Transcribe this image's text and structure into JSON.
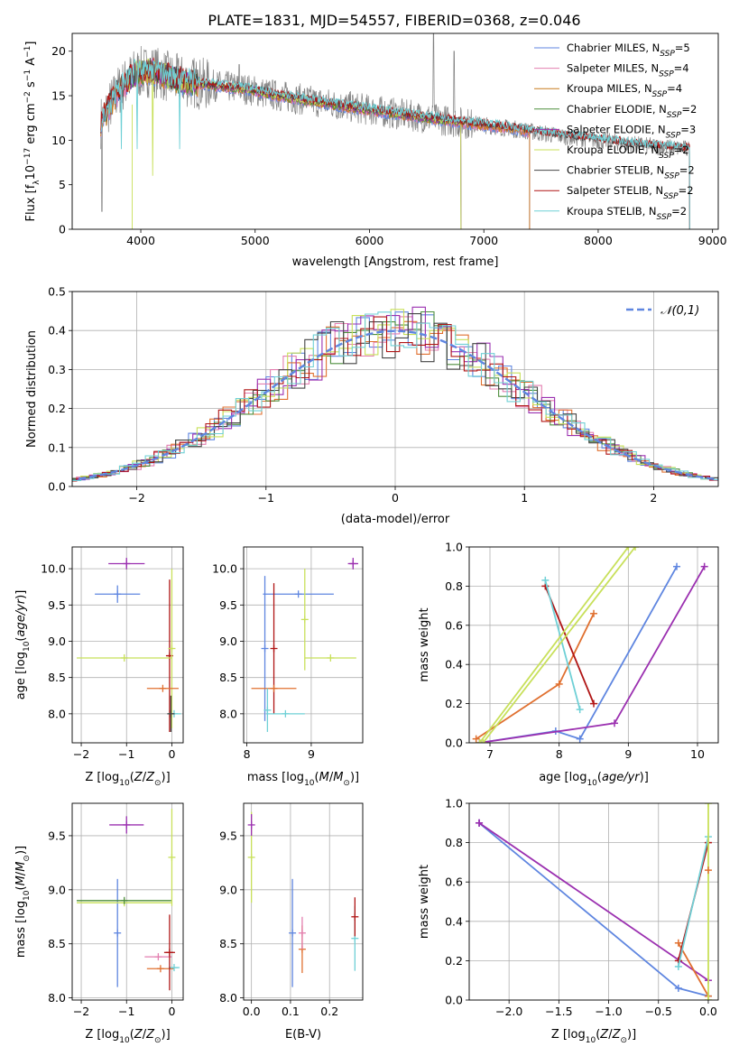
{
  "figure_title": "PLATE=1831, MJD=54557, FIBERID=0368, z=0.046",
  "colors": {
    "chabrier_miles": "#5f86e0",
    "salpeter_miles": "#e37fb0",
    "kroupa_miles": "#c87b1f",
    "chabrier_elodie": "#4f8f3e",
    "salpeter_elodie": "#9b30b0",
    "kroupa_elodie": "#c8e05a",
    "chabrier_stelib": "#444444",
    "salpeter_stelib": "#b01515",
    "kroupa_stelib": "#6fd0d6",
    "data_gray": "#808080",
    "orange": "#e07030",
    "gaussian": "#5f86e0",
    "grid": "#b0b0b0"
  },
  "chart_data": [
    {
      "id": "spectrum",
      "type": "line",
      "title": "PLATE=1831, MJD=54557, FIBERID=0368, z=0.046",
      "xlabel": "wavelength [Angstrom, rest frame]",
      "ylabel": "Flux [f_λ 10^-17 erg cm^-2 s^-1 A^-1]",
      "xlim": [
        3400,
        9050
      ],
      "ylim": [
        0,
        22
      ],
      "xticks": [
        4000,
        5000,
        6000,
        7000,
        8000,
        9000
      ],
      "yticks": [
        0,
        5,
        10,
        15,
        20
      ],
      "grid": false,
      "legend_position": "upper-right",
      "continuum_x": [
        3650,
        3800,
        3950,
        4100,
        4300,
        4600,
        4900,
        5200,
        5600,
        6000,
        6400,
        6800,
        7200,
        7600,
        8000,
        8400,
        8800
      ],
      "continuum_y": [
        12.0,
        15.5,
        17.5,
        17.8,
        16.8,
        16.2,
        15.8,
        15.0,
        14.2,
        13.4,
        12.7,
        12.0,
        11.4,
        10.6,
        10.0,
        9.4,
        9.0
      ],
      "series": [
        {
          "name": "Chabrier MILES, N_SSP=5",
          "color_key": "chabrier_miles",
          "x_range": [
            3650,
            7400
          ]
        },
        {
          "name": "Salpeter MILES, N_SSP=4",
          "color_key": "salpeter_miles",
          "x_range": [
            3650,
            7400
          ]
        },
        {
          "name": "Kroupa MILES, N_SSP=4",
          "color_key": "kroupa_miles",
          "x_range": [
            3650,
            7400
          ]
        },
        {
          "name": "Chabrier ELODIE, N_SSP=2",
          "color_key": "chabrier_elodie",
          "x_range": [
            3900,
            6800
          ]
        },
        {
          "name": "Salpeter ELODIE, N_SSP=3",
          "color_key": "salpeter_elodie",
          "x_range": [
            3900,
            6800
          ]
        },
        {
          "name": "Kroupa ELODIE, N_SSP=2",
          "color_key": "kroupa_elodie",
          "x_range": [
            3900,
            6800
          ]
        },
        {
          "name": "Chabrier STELIB, N_SSP=2",
          "color_key": "chabrier_stelib",
          "x_range": [
            3650,
            8800
          ]
        },
        {
          "name": "Salpeter STELIB, N_SSP=2",
          "color_key": "salpeter_stelib",
          "x_range": [
            3650,
            8800
          ]
        },
        {
          "name": "Kroupa STELIB, N_SSP=2",
          "color_key": "kroupa_stelib",
          "x_range": [
            3650,
            8800
          ]
        }
      ]
    },
    {
      "id": "residuals",
      "type": "line",
      "xlabel": "(data-model)/error",
      "ylabel": "Normed distribution",
      "xlim": [
        -2.5,
        2.5
      ],
      "ylim": [
        0,
        0.5
      ],
      "xticks": [
        -2,
        -1,
        0,
        1,
        2
      ],
      "yticks": [
        0.0,
        0.1,
        0.2,
        0.3,
        0.4,
        0.5
      ],
      "grid": true,
      "legend_position": "upper-right",
      "legend": [
        "𝒩(0,1)"
      ],
      "bin_width": 0.1,
      "series_color_keys": [
        "chabrier_miles",
        "salpeter_miles",
        "orange",
        "chabrier_elodie",
        "salpeter_elodie",
        "kroupa_elodie",
        "chabrier_stelib",
        "salpeter_stelib",
        "kroupa_stelib"
      ]
    },
    {
      "id": "age_vs_Z",
      "type": "scatter",
      "xlabel": "Z [log10(Z/Z⊙)]",
      "ylabel": "age [log10(age/yr)]",
      "xlim": [
        -2.2,
        0.25
      ],
      "ylim": [
        7.6,
        10.3
      ],
      "xticks": [
        -2,
        -1,
        0
      ],
      "yticks": [
        8.0,
        8.5,
        9.0,
        9.5,
        10.0
      ],
      "grid": true,
      "points": [
        {
          "x": -1.0,
          "y": 10.07,
          "xerr": 0.4,
          "yerr": 0.08,
          "color_key": "salpeter_elodie"
        },
        {
          "x": -1.2,
          "y": 9.65,
          "xerr": 0.5,
          "yerr": 0.12,
          "color_key": "chabrier_miles"
        },
        {
          "x": -0.05,
          "y": 8.8,
          "xerr": 0.05,
          "yerr": 1.05,
          "color_key": "salpeter_stelib"
        },
        {
          "x": 0.0,
          "y": 8.9,
          "xerr": 0.03,
          "yerr": 1.1,
          "color_key": "kroupa_elodie"
        },
        {
          "x": -1.05,
          "y": 8.77,
          "xerr": 1.05,
          "yerr": 0.0,
          "color_key": "kroupa_elodie"
        },
        {
          "x": -0.2,
          "y": 8.35,
          "xerr": 0.35,
          "yerr": 0.0,
          "color_key": "orange"
        },
        {
          "x": 0.05,
          "y": 8.0,
          "xerr": 0.15,
          "yerr": 0.0,
          "color_key": "kroupa_stelib"
        },
        {
          "x": -0.02,
          "y": 8.0,
          "xerr": 0.02,
          "yerr": 0.25,
          "color_key": "chabrier_stelib"
        }
      ]
    },
    {
      "id": "age_vs_mass",
      "type": "scatter",
      "xlabel": "mass [log10(M/M⊙)]",
      "xlim": [
        7.95,
        9.8
      ],
      "ylim": [
        7.6,
        10.3
      ],
      "xticks": [
        8,
        9
      ],
      "yticks": [
        8.0,
        8.5,
        9.0,
        9.5,
        10.0
      ],
      "grid": true,
      "points": [
        {
          "x": 9.65,
          "y": 10.07,
          "xerr": 0.08,
          "yerr": 0.08,
          "color_key": "salpeter_elodie"
        },
        {
          "x": 8.8,
          "y": 9.65,
          "xerr": 0.55,
          "yerr": 0.0,
          "color_key": "chabrier_miles"
        },
        {
          "x": 8.42,
          "y": 8.9,
          "xerr": 0.0,
          "yerr": 0.9,
          "color_key": "salpeter_stelib"
        },
        {
          "x": 8.28,
          "y": 8.9,
          "xerr": 0.0,
          "yerr": 1.0,
          "color_key": "chabrier_miles"
        },
        {
          "x": 8.9,
          "y": 9.3,
          "xerr": 0.0,
          "yerr": 0.7,
          "color_key": "kroupa_elodie"
        },
        {
          "x": 9.3,
          "y": 8.77,
          "xerr": 0.4,
          "yerr": 0.0,
          "color_key": "kroupa_elodie"
        },
        {
          "x": 8.42,
          "y": 8.35,
          "xerr": 0.35,
          "yerr": 0.0,
          "color_key": "orange"
        },
        {
          "x": 8.6,
          "y": 8.0,
          "xerr": 0.3,
          "yerr": 0.0,
          "color_key": "kroupa_stelib"
        },
        {
          "x": 8.32,
          "y": 8.05,
          "xerr": 0.0,
          "yerr": 0.3,
          "color_key": "kroupa_stelib"
        }
      ]
    },
    {
      "id": "weight_vs_age",
      "type": "line",
      "xlabel": "age [log10(age/yr)]",
      "ylabel": "mass weight",
      "xlim": [
        6.7,
        10.3
      ],
      "ylim": [
        0,
        1
      ],
      "xticks": [
        7,
        8,
        9,
        10
      ],
      "yticks": [
        0.0,
        0.2,
        0.4,
        0.6,
        0.8,
        1.0
      ],
      "grid": true,
      "series": [
        {
          "color_key": "chabrier_miles",
          "x": [
            6.85,
            7.95,
            8.3,
            9.7
          ],
          "y": [
            0.0,
            0.06,
            0.02,
            0.9
          ]
        },
        {
          "color_key": "salpeter_elodie",
          "x": [
            6.85,
            8.8,
            10.1
          ],
          "y": [
            0.0,
            0.1,
            0.9
          ]
        },
        {
          "color_key": "orange",
          "x": [
            6.8,
            8.0,
            8.5
          ],
          "y": [
            0.02,
            0.3,
            0.66
          ]
        },
        {
          "color_key": "salpeter_stelib",
          "x": [
            7.8,
            8.5
          ],
          "y": [
            0.8,
            0.2
          ]
        },
        {
          "color_key": "kroupa_stelib",
          "x": [
            7.8,
            8.3
          ],
          "y": [
            0.83,
            0.17
          ]
        },
        {
          "color_key": "kroupa_elodie",
          "x": [
            6.85,
            9.0
          ],
          "y": [
            0.0,
            1.0
          ]
        },
        {
          "color_key": "kroupa_elodie",
          "x": [
            6.9,
            9.1
          ],
          "y": [
            0.0,
            1.0
          ]
        }
      ]
    },
    {
      "id": "mass_vs_Z",
      "type": "scatter",
      "xlabel": "Z [log10(Z/Z⊙)]",
      "ylabel": "mass [log10(M/M⊙)]",
      "xlim": [
        -2.2,
        0.25
      ],
      "ylim": [
        7.98,
        9.8
      ],
      "xticks": [
        -2,
        -1,
        0
      ],
      "yticks": [
        8.0,
        8.5,
        9.0,
        9.5
      ],
      "grid": true,
      "points": [
        {
          "x": -1.0,
          "y": 9.6,
          "xerr": 0.38,
          "yerr": 0.08,
          "color_key": "salpeter_elodie"
        },
        {
          "x": -1.2,
          "y": 8.6,
          "xerr": 0.0,
          "yerr": 0.5,
          "color_key": "chabrier_miles"
        },
        {
          "x": -1.05,
          "y": 8.88,
          "xerr": 1.05,
          "yerr": 0.0,
          "color_key": "kroupa_elodie"
        },
        {
          "x": -1.05,
          "y": 8.9,
          "xerr": 1.05,
          "yerr": 0.0,
          "color_key": "chabrier_elodie"
        },
        {
          "x": 0.0,
          "y": 9.3,
          "xerr": 0.0,
          "yerr": 0.45,
          "color_key": "kroupa_elodie"
        },
        {
          "x": -0.3,
          "y": 8.38,
          "xerr": 0.3,
          "yerr": 0.0,
          "color_key": "salpeter_miles"
        },
        {
          "x": -0.25,
          "y": 8.27,
          "xerr": 0.3,
          "yerr": 0.0,
          "color_key": "orange"
        },
        {
          "x": 0.05,
          "y": 8.28,
          "xerr": 0.12,
          "yerr": 0.0,
          "color_key": "kroupa_stelib"
        },
        {
          "x": -0.05,
          "y": 8.42,
          "xerr": 0.12,
          "yerr": 0.35,
          "color_key": "salpeter_stelib"
        }
      ]
    },
    {
      "id": "mass_vs_ebv",
      "type": "scatter",
      "xlabel": "E(B-V)",
      "xlim": [
        -0.02,
        0.285
      ],
      "ylim": [
        7.98,
        9.8
      ],
      "xticks": [
        0.0,
        0.1,
        0.2
      ],
      "yticks": [
        8.0,
        8.5,
        9.0,
        9.5
      ],
      "grid": true,
      "points": [
        {
          "x": 0.0,
          "y": 9.3,
          "xerr": 0.0,
          "yerr": 0.42,
          "color_key": "kroupa_elodie"
        },
        {
          "x": 0.0,
          "y": 9.6,
          "xerr": 0.0,
          "yerr": 0.1,
          "color_key": "salpeter_elodie"
        },
        {
          "x": 0.105,
          "y": 8.6,
          "xerr": 0.0,
          "yerr": 0.5,
          "color_key": "chabrier_miles"
        },
        {
          "x": 0.13,
          "y": 8.45,
          "xerr": 0.0,
          "yerr": 0.22,
          "color_key": "orange"
        },
        {
          "x": 0.13,
          "y": 8.6,
          "xerr": 0.0,
          "yerr": 0.15,
          "color_key": "salpeter_miles"
        },
        {
          "x": 0.265,
          "y": 8.55,
          "xerr": 0.0,
          "yerr": 0.3,
          "color_key": "kroupa_stelib"
        },
        {
          "x": 0.265,
          "y": 8.75,
          "xerr": 0.0,
          "yerr": 0.18,
          "color_key": "salpeter_stelib"
        }
      ]
    },
    {
      "id": "weight_vs_Z",
      "type": "line",
      "xlabel": "Z [log10(Z/Z⊙)]",
      "ylabel": "mass weight",
      "xlim": [
        -2.4,
        0.1
      ],
      "ylim": [
        0,
        1
      ],
      "xticks": [
        -2.0,
        -1.5,
        -1.0,
        -0.5,
        0.0
      ],
      "yticks": [
        0.0,
        0.2,
        0.4,
        0.6,
        0.8,
        1.0
      ],
      "grid": true,
      "series": [
        {
          "color_key": "chabrier_miles",
          "x": [
            -2.3,
            -0.3,
            0.0
          ],
          "y": [
            0.9,
            0.06,
            0.02
          ]
        },
        {
          "color_key": "salpeter_elodie",
          "x": [
            -2.3,
            0.0
          ],
          "y": [
            0.9,
            0.1
          ]
        },
        {
          "color_key": "orange",
          "x": [
            -0.3,
            0.0
          ],
          "y": [
            0.29,
            0.02
          ]
        },
        {
          "color_key": "salpeter_stelib",
          "x": [
            -0.3,
            0.0
          ],
          "y": [
            0.2,
            0.8
          ]
        },
        {
          "color_key": "kroupa_stelib",
          "x": [
            -0.3,
            0.0
          ],
          "y": [
            0.17,
            0.83
          ]
        },
        {
          "color_key": "kroupa_elodie",
          "x": [
            0.0,
            0.0
          ],
          "y": [
            0.0,
            1.0
          ]
        }
      ],
      "markers": [
        {
          "x": 0.0,
          "y": 0.66,
          "color_key": "orange"
        },
        {
          "x": -2.3,
          "y": 0.9,
          "color_key": "salpeter_elodie"
        }
      ]
    }
  ]
}
